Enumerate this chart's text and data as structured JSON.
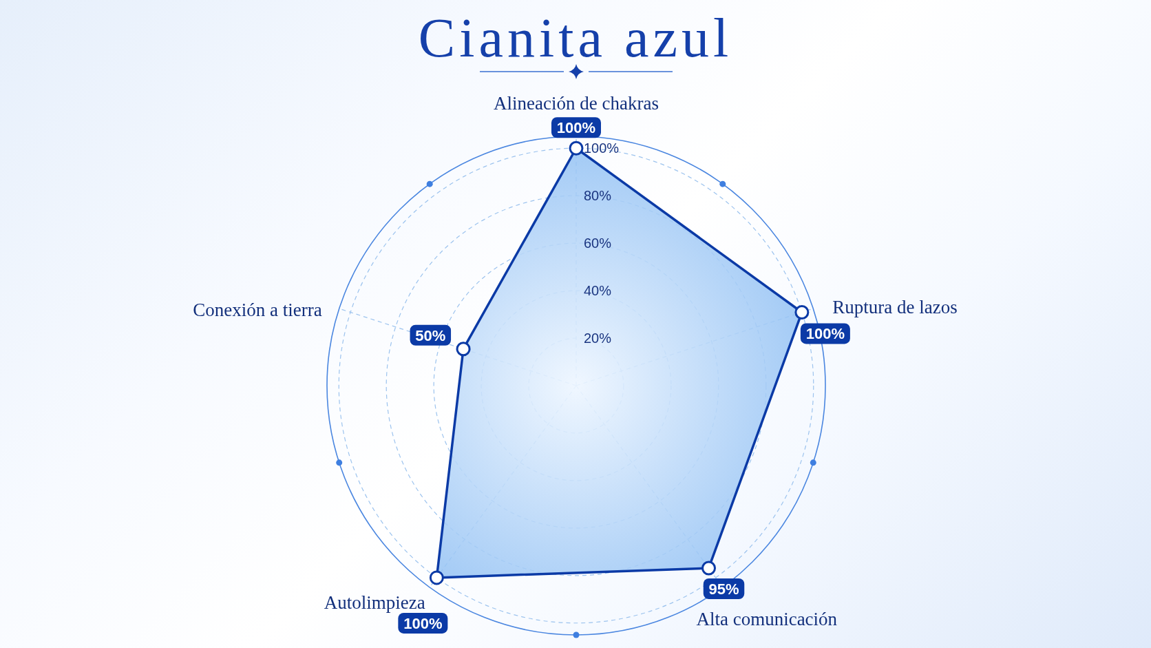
{
  "chart_data": {
    "type": "radar",
    "title": "Cianita azul",
    "categories": [
      "Alineación de chakras",
      "Ruptura de lazos",
      "Alta comunicación",
      "Autolimpieza",
      "Conexión a tierra"
    ],
    "series": [
      {
        "color": "#0b3aa6",
        "values": [
          100,
          100,
          95,
          100,
          50
        ],
        "value_labels": [
          "100%",
          "100%",
          "95%",
          "100%",
          "50%"
        ]
      }
    ],
    "ylim": [
      0,
      105
    ],
    "yticks": [
      {
        "value": 20,
        "label": "20%"
      },
      {
        "value": 40,
        "label": "40%"
      },
      {
        "value": 60,
        "label": "60%"
      },
      {
        "value": 80,
        "label": "80%"
      },
      {
        "value": 100,
        "label": "100%"
      }
    ],
    "grid": true,
    "marker": "circle"
  }
}
